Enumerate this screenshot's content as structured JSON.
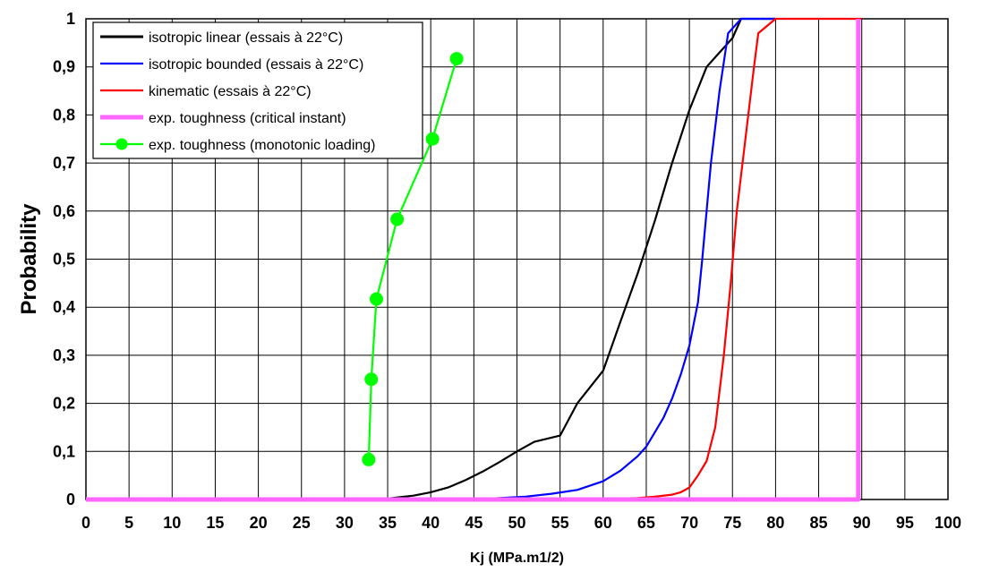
{
  "chart_data": {
    "type": "line",
    "title": "",
    "xlabel": "Kj (MPa.m1/2)",
    "ylabel": "Probability",
    "xlim": [
      0,
      100
    ],
    "ylim": [
      0,
      1
    ],
    "grid": true,
    "legend_position": "top-left",
    "x_ticks": [
      "0",
      "5",
      "10",
      "15",
      "20",
      "25",
      "30",
      "35",
      "40",
      "45",
      "50",
      "55",
      "60",
      "65",
      "70",
      "75",
      "80",
      "85",
      "90",
      "95",
      "100"
    ],
    "y_ticks": [
      "0",
      "0,1",
      "0,2",
      "0,3",
      "0,4",
      "0,5",
      "0,6",
      "0,7",
      "0,8",
      "0,9",
      "1"
    ],
    "series": [
      {
        "name": "isotropic linear (essais à 22°C)",
        "color": "#000000",
        "marker": "none",
        "points": [
          [
            0,
            0
          ],
          [
            34,
            0
          ],
          [
            36,
            0.004
          ],
          [
            38,
            0.008
          ],
          [
            40,
            0.015
          ],
          [
            42,
            0.025
          ],
          [
            44,
            0.04
          ],
          [
            46,
            0.058
          ],
          [
            48,
            0.078
          ],
          [
            50,
            0.1
          ],
          [
            52,
            0.12
          ],
          [
            55,
            0.133
          ],
          [
            57,
            0.2
          ],
          [
            60,
            0.268
          ],
          [
            62,
            0.37
          ],
          [
            64,
            0.47
          ],
          [
            66,
            0.58
          ],
          [
            68,
            0.7
          ],
          [
            70,
            0.81
          ],
          [
            72,
            0.9
          ],
          [
            73.5,
            0.93
          ],
          [
            75,
            0.96
          ],
          [
            76,
            1
          ],
          [
            80,
            1
          ]
        ]
      },
      {
        "name": "isotropic bounded (essais à 22°C)",
        "color": "#0000ff",
        "marker": "none",
        "points": [
          [
            0,
            0
          ],
          [
            45,
            0
          ],
          [
            48,
            0.003
          ],
          [
            51,
            0.006
          ],
          [
            54,
            0.012
          ],
          [
            57,
            0.02
          ],
          [
            60,
            0.038
          ],
          [
            62,
            0.06
          ],
          [
            64,
            0.09
          ],
          [
            65,
            0.11
          ],
          [
            66,
            0.14
          ],
          [
            67,
            0.17
          ],
          [
            68,
            0.21
          ],
          [
            69,
            0.26
          ],
          [
            70,
            0.32
          ],
          [
            71,
            0.41
          ],
          [
            71.5,
            0.5
          ],
          [
            72.5,
            0.7
          ],
          [
            73.5,
            0.85
          ],
          [
            74.5,
            0.97
          ],
          [
            76,
            1
          ],
          [
            80,
            1
          ]
        ]
      },
      {
        "name": "kinematic (essais à 22°C)",
        "color": "#ff0000",
        "marker": "none",
        "points": [
          [
            0,
            0
          ],
          [
            60,
            0
          ],
          [
            62,
            0.002
          ],
          [
            64,
            0.003
          ],
          [
            66,
            0.006
          ],
          [
            68,
            0.01
          ],
          [
            69,
            0.015
          ],
          [
            70,
            0.025
          ],
          [
            71,
            0.05
          ],
          [
            72,
            0.08
          ],
          [
            73,
            0.15
          ],
          [
            74,
            0.3
          ],
          [
            74.8,
            0.45
          ],
          [
            75.5,
            0.6
          ],
          [
            76.5,
            0.75
          ],
          [
            77.5,
            0.9
          ],
          [
            78,
            0.97
          ],
          [
            80,
            1
          ],
          [
            90,
            1
          ]
        ]
      },
      {
        "name": "exp. toughness (critical instant)",
        "color": "#ff66ff",
        "marker": "none",
        "points": [
          [
            0,
            0
          ],
          [
            80,
            0
          ],
          [
            89.6,
            0
          ],
          [
            89.6,
            1
          ]
        ]
      },
      {
        "name": "exp. toughness (monotonic loading)",
        "color": "#00ff00",
        "marker": "circle",
        "points": [
          [
            32.8,
            0.083
          ],
          [
            33.1,
            0.25
          ],
          [
            33.7,
            0.417
          ],
          [
            36.1,
            0.583
          ],
          [
            40.2,
            0.75
          ],
          [
            43,
            0.917
          ]
        ]
      }
    ]
  }
}
